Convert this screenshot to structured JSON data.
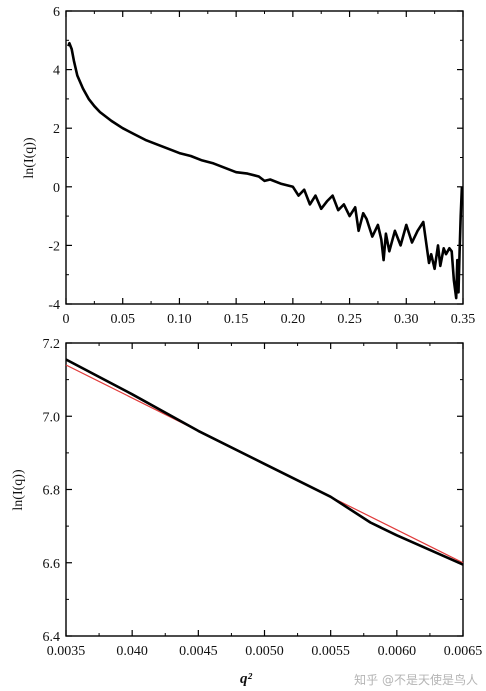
{
  "watermark": "知乎 @不是天使是鸟人",
  "chart_data": [
    {
      "type": "line",
      "ylabel": "ln(I(q))",
      "xlabel": "",
      "xlim": [
        0,
        0.35
      ],
      "ylim": [
        -4,
        6
      ],
      "x_ticks": [
        "0",
        "0.05",
        "0.10",
        "0.15",
        "0.20",
        "0.25",
        "0.30",
        "0.35"
      ],
      "y_ticks": [
        "-4",
        "-2",
        "0",
        "2",
        "4",
        "6"
      ],
      "grid": false,
      "series": [
        {
          "color": "#000000",
          "x": [
            0.002,
            0.003,
            0.005,
            0.007,
            0.01,
            0.015,
            0.02,
            0.025,
            0.03,
            0.04,
            0.05,
            0.06,
            0.07,
            0.08,
            0.09,
            0.1,
            0.11,
            0.12,
            0.13,
            0.14,
            0.15,
            0.16,
            0.17,
            0.175,
            0.18,
            0.19,
            0.2,
            0.205,
            0.21,
            0.215,
            0.22,
            0.225,
            0.23,
            0.235,
            0.24,
            0.245,
            0.25,
            0.255,
            0.258,
            0.262,
            0.265,
            0.27,
            0.275,
            0.278,
            0.28,
            0.282,
            0.285,
            0.29,
            0.295,
            0.3,
            0.305,
            0.31,
            0.315,
            0.32,
            0.322,
            0.325,
            0.328,
            0.33,
            0.333,
            0.335,
            0.338,
            0.34,
            0.342,
            0.344,
            0.345,
            0.346,
            0.347,
            0.348,
            0.349
          ],
          "y": [
            4.8,
            4.9,
            4.7,
            4.3,
            3.8,
            3.35,
            3.0,
            2.75,
            2.55,
            2.25,
            2.0,
            1.8,
            1.6,
            1.45,
            1.3,
            1.15,
            1.05,
            0.9,
            0.8,
            0.65,
            0.5,
            0.45,
            0.35,
            0.2,
            0.25,
            0.1,
            0.0,
            -0.3,
            -0.1,
            -0.6,
            -0.3,
            -0.75,
            -0.5,
            -0.3,
            -0.8,
            -0.6,
            -1.0,
            -0.7,
            -1.5,
            -0.9,
            -1.1,
            -1.7,
            -1.3,
            -1.8,
            -2.5,
            -1.6,
            -2.2,
            -1.5,
            -2.0,
            -1.3,
            -1.9,
            -1.5,
            -1.2,
            -2.6,
            -2.3,
            -2.8,
            -2.0,
            -2.7,
            -2.1,
            -2.3,
            -2.1,
            -2.2,
            -3.2,
            -3.8,
            -2.5,
            -3.6,
            -2.2,
            -1.0,
            0.0
          ]
        }
      ]
    },
    {
      "type": "line",
      "ylabel": "ln(I(q))",
      "xlabel": "q²",
      "xlim": [
        0.0035,
        0.0065
      ],
      "ylim": [
        6.4,
        7.2
      ],
      "x_ticks": [
        "0.0035",
        "0.040",
        "0.0045",
        "0.0050",
        "0.0055",
        "0.0060",
        "0.0065"
      ],
      "y_ticks": [
        "6.4",
        "6.6",
        "6.8",
        "7.0",
        "7.2"
      ],
      "grid": false,
      "series": [
        {
          "color": "#000000",
          "x": [
            0.0035,
            0.004,
            0.0045,
            0.005,
            0.0055,
            0.0058,
            0.006,
            0.0065
          ],
          "y": [
            7.155,
            7.06,
            6.96,
            6.87,
            6.78,
            6.71,
            6.675,
            6.595
          ]
        },
        {
          "color": "#e03a3a",
          "x": [
            0.0035,
            0.0065
          ],
          "y": [
            7.14,
            6.6
          ]
        }
      ]
    }
  ]
}
